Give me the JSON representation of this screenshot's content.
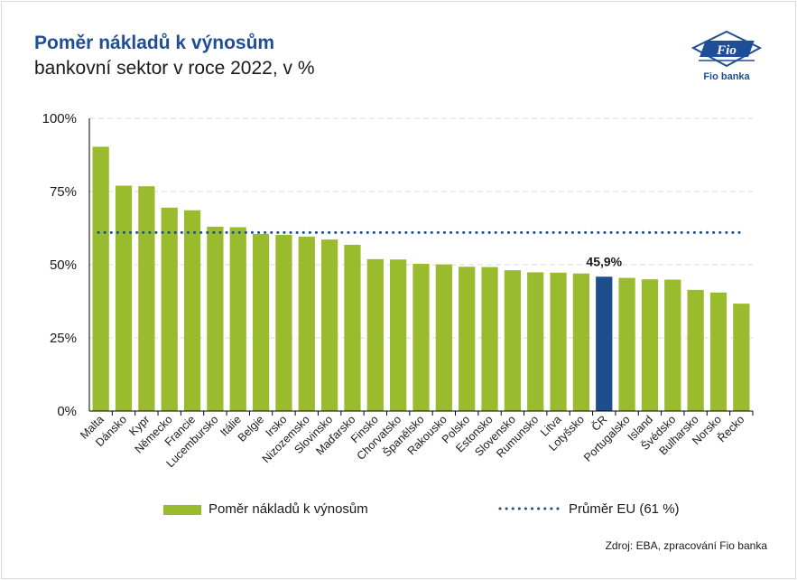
{
  "title": "Poměr nákladů k výnosům",
  "subtitle": "bankovní sektor v roce 2022, v %",
  "logo_text": "Fio banka",
  "logo_mark": "Fio",
  "source": "Zdroj: EBA, zpracování Fio banka",
  "legend": {
    "bar_label": "Poměr nákladů k výnosům",
    "line_label": "Průměr EU  (61 %)"
  },
  "colors": {
    "bar": "#9bbb2f",
    "highlight": "#1f4e8c",
    "avg_line": "#1f4e8c",
    "title": "#1f4e96"
  },
  "chart_data": {
    "type": "bar",
    "categories": [
      "Malta",
      "Dánsko",
      "Kypr",
      "Německo",
      "Francie",
      "Lucembursko",
      "Itálie",
      "Belgie",
      "Irsko",
      "Nizozemsko",
      "Slovinsko",
      "Maďarsko",
      "Finsko",
      "Chorvatsko",
      "Španělsko",
      "Rakousko",
      "Polsko",
      "Estonsko",
      "Slovensko",
      "Rumunsko",
      "Litva",
      "Lotyšsko",
      "ČR",
      "Portugalsko",
      "Island",
      "Švédsko",
      "Bulharsko",
      "Norsko",
      "Řecko"
    ],
    "series": [
      {
        "name": "Poměr nákladů k výnosům",
        "values": [
          90.3,
          77.0,
          76.8,
          69.5,
          68.6,
          63.0,
          62.8,
          60.5,
          60.2,
          59.6,
          58.6,
          56.8,
          51.9,
          51.8,
          50.3,
          50.1,
          49.3,
          49.2,
          48.1,
          47.4,
          47.3,
          47.0,
          45.9,
          45.5,
          45.0,
          44.9,
          41.4,
          40.5,
          36.7
        ]
      }
    ],
    "highlight_category": "ČR",
    "highlight_label": "45,9%",
    "reference_line": {
      "name": "Průměr EU",
      "value": 61
    },
    "ylim": [
      0,
      100
    ],
    "yticks": [
      0,
      25,
      50,
      75,
      100
    ],
    "ytick_labels": [
      "0%",
      "25%",
      "50%",
      "75%",
      "100%"
    ],
    "grid": true,
    "legend_position": "bottom"
  }
}
